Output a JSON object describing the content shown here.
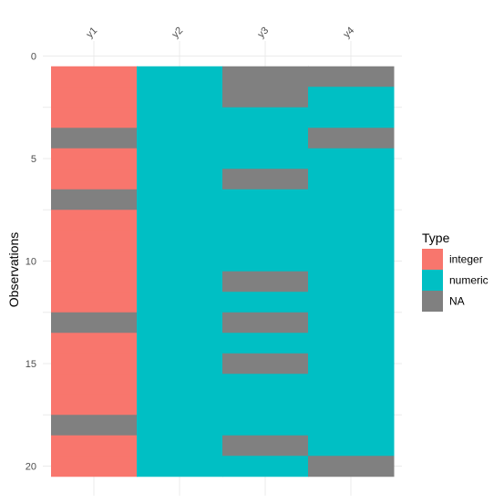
{
  "chart_data": {
    "type": "heatmap",
    "title": "",
    "xlabel": "",
    "ylabel": "Observations",
    "columns": [
      "y1",
      "y2",
      "y3",
      "y4"
    ],
    "rows": [
      1,
      2,
      3,
      4,
      5,
      6,
      7,
      8,
      9,
      10,
      11,
      12,
      13,
      14,
      15,
      16,
      17,
      18,
      19,
      20
    ],
    "y_ticks": [
      0,
      5,
      10,
      15,
      20
    ],
    "ylim": [
      0,
      20.5
    ],
    "y_reversed": true,
    "grid": true,
    "legend": {
      "title": "Type",
      "position": "right",
      "entries": [
        {
          "label": "integer",
          "color": "#F8766D"
        },
        {
          "label": "numeric",
          "color": "#00BFC4"
        },
        {
          "label": "NA",
          "color": "#808080"
        }
      ]
    },
    "cells": {
      "y1": [
        "integer",
        "integer",
        "integer",
        "NA",
        "integer",
        "integer",
        "NA",
        "integer",
        "integer",
        "integer",
        "integer",
        "integer",
        "NA",
        "integer",
        "integer",
        "integer",
        "integer",
        "NA",
        "integer",
        "integer"
      ],
      "y2": [
        "numeric",
        "numeric",
        "numeric",
        "numeric",
        "numeric",
        "numeric",
        "numeric",
        "numeric",
        "numeric",
        "numeric",
        "numeric",
        "numeric",
        "numeric",
        "numeric",
        "numeric",
        "numeric",
        "numeric",
        "numeric",
        "numeric",
        "numeric"
      ],
      "y3": [
        "NA",
        "NA",
        "numeric",
        "numeric",
        "numeric",
        "NA",
        "numeric",
        "numeric",
        "numeric",
        "numeric",
        "NA",
        "numeric",
        "NA",
        "numeric",
        "NA",
        "numeric",
        "numeric",
        "numeric",
        "NA",
        "numeric"
      ],
      "y4": [
        "NA",
        "numeric",
        "numeric",
        "NA",
        "numeric",
        "numeric",
        "numeric",
        "numeric",
        "numeric",
        "numeric",
        "numeric",
        "numeric",
        "numeric",
        "numeric",
        "numeric",
        "numeric",
        "numeric",
        "numeric",
        "numeric",
        "NA"
      ]
    }
  }
}
